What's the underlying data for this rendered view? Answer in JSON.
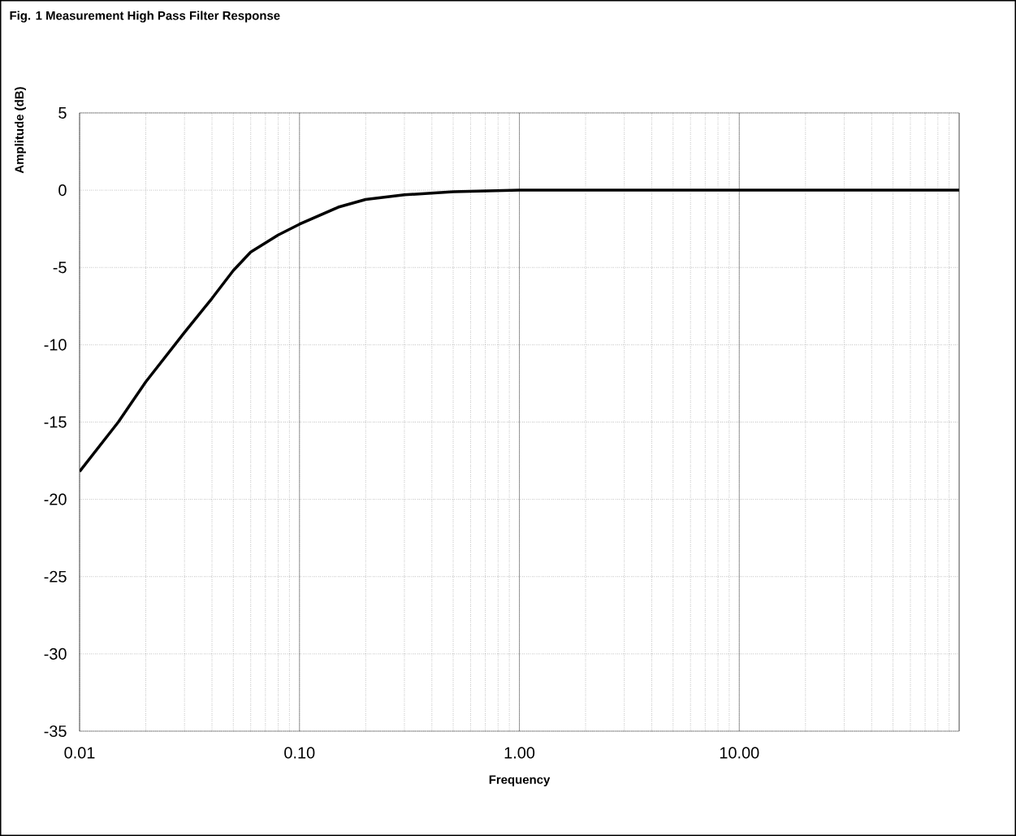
{
  "chart_data": {
    "type": "line",
    "title": "Fig. 1     Measurement High Pass Filter Response",
    "xlabel": "Frequency",
    "ylabel": "Amplitude (dB)",
    "log": "x",
    "grid": true,
    "marker": "none",
    "line_style": "solid",
    "xlim": [
      0.01,
      100
    ],
    "ylim": [
      -35,
      5
    ],
    "xticks": [
      {
        "value": 0.01,
        "label": "0.01"
      },
      {
        "value": 0.1,
        "label": "0.10"
      },
      {
        "value": 1,
        "label": "1.00"
      },
      {
        "value": 10,
        "label": "10.00"
      },
      {
        "value": 100,
        "label": null
      }
    ],
    "yticks": [
      -35,
      -30,
      -25,
      -20,
      -15,
      -10,
      -5,
      0,
      5
    ],
    "series": [
      {
        "color": "#000000",
        "x": [
          0.01,
          0.015,
          0.02,
          0.03,
          0.04,
          0.05,
          0.06,
          0.08,
          0.1,
          0.15,
          0.2,
          0.3,
          0.5,
          1,
          10,
          100
        ],
        "values": [
          -18.2,
          -15.0,
          -12.4,
          -9.2,
          -7.0,
          -5.2,
          -4.0,
          -2.9,
          -2.2,
          -1.1,
          -0.6,
          -0.3,
          -0.1,
          0,
          0,
          0
        ]
      }
    ]
  }
}
